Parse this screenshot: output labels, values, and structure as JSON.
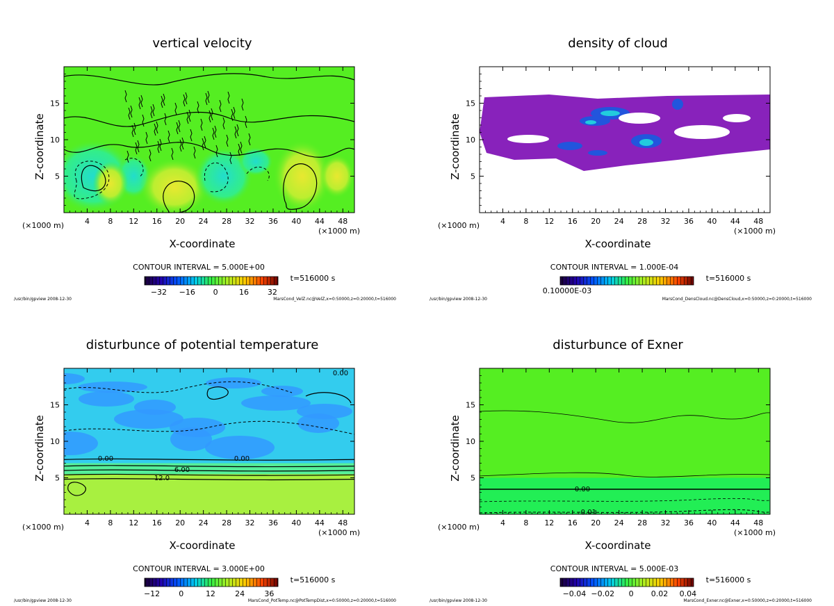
{
  "chart_data": [
    {
      "type": "heatmap",
      "title": "vertical velocity",
      "xlabel": "X-coordinate",
      "ylabel": "Z-coordinate",
      "x_unit": "(×1000 m)",
      "xticks": [
        "4",
        "8",
        "12",
        "16",
        "20",
        "24",
        "28",
        "32",
        "36",
        "40",
        "44",
        "48"
      ],
      "yticks": [
        "5",
        "10",
        "15"
      ],
      "xlim": [
        0,
        50
      ],
      "ylim": [
        0,
        20
      ],
      "contour_interval": "CONTOUR INTERVAL = 5.000E+00",
      "time": "t=516000 s",
      "colorbar_ticks": [
        "−32",
        "−16",
        "0",
        "16",
        "32"
      ],
      "colorbar_values": [
        -32,
        -16,
        0,
        16,
        32
      ],
      "footer_left": "/usr/bin/gpview  2008-12-30",
      "footer_right": "MarsCond_VelZ.nc@VelZ,x=0:50000,z=0:20000,t=516000",
      "contour_labels": []
    },
    {
      "type": "heatmap",
      "title": "density of cloud",
      "xlabel": "X-coordinate",
      "ylabel": "Z-coordinate",
      "x_unit": "(×1000 m)",
      "xticks": [
        "4",
        "8",
        "12",
        "16",
        "20",
        "24",
        "28",
        "32",
        "36",
        "40",
        "44",
        "48"
      ],
      "yticks": [
        "5",
        "10",
        "15"
      ],
      "xlim": [
        0,
        50
      ],
      "ylim": [
        0,
        20
      ],
      "contour_interval": "CONTOUR INTERVAL = 1.000E-04",
      "time": "t=516000 s",
      "colorbar_ticks": [
        "0.10000E-03"
      ],
      "colorbar_values": [
        0.0001
      ],
      "footer_left": "/usr/bin/gpview  2008-12-30",
      "footer_right": "MarsCond_DensCloud.nc@DensCloud,x=0:50000,z=0:20000,t=516000",
      "contour_labels": []
    },
    {
      "type": "heatmap",
      "title": "disturbunce of potential temperature",
      "xlabel": "X-coordinate",
      "ylabel": "Z-coordinate",
      "x_unit": "(×1000 m)",
      "xticks": [
        "4",
        "8",
        "12",
        "16",
        "20",
        "24",
        "28",
        "32",
        "36",
        "40",
        "44",
        "48"
      ],
      "yticks": [
        "5",
        "10",
        "15"
      ],
      "xlim": [
        0,
        50
      ],
      "ylim": [
        0,
        20
      ],
      "contour_interval": "CONTOUR INTERVAL = 3.000E+00",
      "time": "t=516000 s",
      "colorbar_ticks": [
        "−12",
        "0",
        "12",
        "24",
        "36"
      ],
      "colorbar_values": [
        -12,
        0,
        12,
        24,
        36
      ],
      "footer_left": "/usr/bin/gpview  2008-12-30",
      "footer_right": "MarsCond_PotTemp.nc@PotTempDist,x=0:50000,z=0:20000,t=516000",
      "contour_labels": [
        "0.00",
        "0.00",
        "0.00",
        "6.00",
        "12.0"
      ]
    },
    {
      "type": "heatmap",
      "title": "disturbunce of Exner",
      "xlabel": "X-coordinate",
      "ylabel": "Z-coordinate",
      "x_unit": "(×1000 m)",
      "xticks": [
        "4",
        "8",
        "12",
        "16",
        "20",
        "24",
        "28",
        "32",
        "36",
        "40",
        "44",
        "48"
      ],
      "yticks": [
        "5",
        "10",
        "15"
      ],
      "xlim": [
        0,
        50
      ],
      "ylim": [
        0,
        20
      ],
      "contour_interval": "CONTOUR INTERVAL = 5.000E-03",
      "time": "t=516000 s",
      "colorbar_ticks": [
        "−0.04",
        "−0.02",
        "0",
        "0.02",
        "0.04"
      ],
      "colorbar_values": [
        -0.04,
        -0.02,
        0,
        0.02,
        0.04
      ],
      "footer_left": "/usr/bin/gpview  2008-12-30",
      "footer_right": "MarsCond_Exner.nc@Exner,x=0:50000,z=0:20000,t=516000",
      "contour_labels": [
        "0.00",
        "-0.01"
      ]
    }
  ],
  "colors": {
    "field_green": "#55ee22",
    "field_light": "#a8f040",
    "cold_cyan": "#33ccee",
    "cold_blue": "#3399ff",
    "cloud_purple": "#8822bb",
    "cloud_blue": "#2255dd"
  }
}
